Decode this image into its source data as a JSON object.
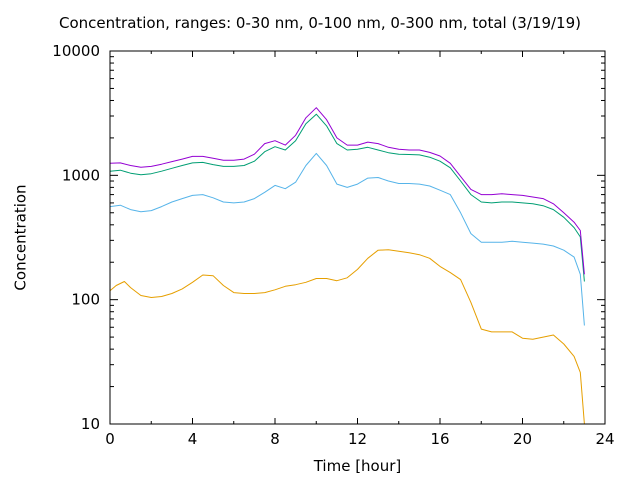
{
  "chart_data": {
    "type": "line",
    "title": "Concentration, ranges: 0-30 nm, 0-100 nm, 0-300 nm, total (3/19/19)",
    "xlabel": "Time [hour]",
    "ylabel": "Concentration",
    "xlim": [
      0,
      24
    ],
    "ylim": [
      10,
      10000
    ],
    "yscale": "log",
    "xticks": [
      "0",
      "4",
      "8",
      "12",
      "16",
      "20",
      "24"
    ],
    "xtick_values": [
      0,
      4,
      8,
      12,
      16,
      20,
      24
    ],
    "yticks": [
      "10",
      "100",
      "1000",
      "10000"
    ],
    "ytick_values": [
      10,
      100,
      1000,
      10000
    ],
    "grid": false,
    "legend": "none",
    "series": [
      {
        "color": "#e69f00",
        "x": [
          0,
          0.3,
          0.7,
          1.0,
          1.5,
          2.0,
          2.5,
          3.0,
          3.5,
          4.0,
          4.5,
          5.0,
          5.5,
          6.0,
          6.5,
          7.0,
          7.5,
          8.0,
          8.5,
          9.0,
          9.5,
          10.0,
          10.5,
          11.0,
          11.5,
          12.0,
          12.5,
          13.0,
          13.5,
          14.0,
          14.5,
          15.0,
          15.5,
          16.0,
          16.5,
          17.0,
          17.5,
          18.0,
          18.5,
          19.0,
          19.5,
          20.0,
          20.5,
          21.0,
          21.5,
          22.0,
          22.5,
          22.8,
          23.0
        ],
        "values": [
          118,
          130,
          140,
          125,
          108,
          104,
          106,
          112,
          122,
          138,
          158,
          156,
          130,
          114,
          112,
          112,
          114,
          120,
          128,
          132,
          138,
          148,
          148,
          142,
          150,
          175,
          215,
          250,
          252,
          245,
          238,
          230,
          215,
          185,
          165,
          145,
          95,
          58,
          55,
          55,
          55,
          49,
          48,
          50,
          52,
          44,
          35,
          26,
          10
        ]
      },
      {
        "color": "#56b4e9",
        "x": [
          0,
          0.5,
          1.0,
          1.5,
          2.0,
          2.5,
          3.0,
          3.5,
          4.0,
          4.5,
          5.0,
          5.5,
          6.0,
          6.5,
          7.0,
          7.5,
          8.0,
          8.5,
          9.0,
          9.5,
          10.0,
          10.5,
          11.0,
          11.5,
          12.0,
          12.5,
          13.0,
          13.5,
          14.0,
          14.5,
          15.0,
          15.5,
          16.0,
          16.5,
          17.0,
          17.5,
          18.0,
          18.5,
          19.0,
          19.5,
          20.0,
          20.5,
          21.0,
          21.5,
          22.0,
          22.5,
          22.8,
          23.0
        ],
        "values": [
          560,
          575,
          530,
          510,
          520,
          560,
          610,
          650,
          690,
          700,
          660,
          610,
          600,
          610,
          650,
          730,
          830,
          780,
          880,
          1200,
          1500,
          1200,
          850,
          800,
          850,
          950,
          960,
          900,
          860,
          860,
          850,
          820,
          760,
          700,
          500,
          340,
          290,
          290,
          290,
          295,
          290,
          285,
          280,
          270,
          250,
          220,
          160,
          62
        ]
      },
      {
        "color": "#009e73",
        "x": [
          0,
          0.5,
          1.0,
          1.5,
          2.0,
          2.5,
          3.0,
          3.5,
          4.0,
          4.5,
          5.0,
          5.5,
          6.0,
          6.5,
          7.0,
          7.5,
          8.0,
          8.5,
          9.0,
          9.5,
          10.0,
          10.5,
          11.0,
          11.5,
          12.0,
          12.5,
          13.0,
          13.5,
          14.0,
          14.5,
          15.0,
          15.5,
          16.0,
          16.5,
          17.0,
          17.5,
          18.0,
          18.5,
          19.0,
          19.5,
          20.0,
          20.5,
          21.0,
          21.5,
          22.0,
          22.5,
          22.8,
          23.0
        ],
        "values": [
          1080,
          1100,
          1040,
          1010,
          1030,
          1080,
          1140,
          1200,
          1260,
          1270,
          1220,
          1180,
          1180,
          1200,
          1300,
          1550,
          1700,
          1600,
          1900,
          2600,
          3100,
          2500,
          1800,
          1600,
          1620,
          1680,
          1600,
          1520,
          1480,
          1470,
          1460,
          1400,
          1300,
          1150,
          900,
          700,
          610,
          600,
          610,
          610,
          600,
          590,
          570,
          530,
          460,
          380,
          320,
          140
        ]
      },
      {
        "color": "#9400d3",
        "x": [
          0,
          0.5,
          1.0,
          1.5,
          2.0,
          2.5,
          3.0,
          3.5,
          4.0,
          4.5,
          5.0,
          5.5,
          6.0,
          6.5,
          7.0,
          7.5,
          8.0,
          8.5,
          9.0,
          9.5,
          10.0,
          10.5,
          11.0,
          11.5,
          12.0,
          12.5,
          13.0,
          13.5,
          14.0,
          14.5,
          15.0,
          15.5,
          16.0,
          16.5,
          17.0,
          17.5,
          18.0,
          18.5,
          19.0,
          19.5,
          20.0,
          20.5,
          21.0,
          21.5,
          22.0,
          22.5,
          22.8,
          23.0
        ],
        "values": [
          1250,
          1260,
          1200,
          1160,
          1180,
          1230,
          1290,
          1350,
          1420,
          1420,
          1370,
          1320,
          1320,
          1350,
          1480,
          1800,
          1900,
          1750,
          2100,
          2900,
          3500,
          2800,
          2000,
          1750,
          1750,
          1850,
          1800,
          1680,
          1620,
          1600,
          1600,
          1530,
          1430,
          1250,
          980,
          770,
          700,
          700,
          710,
          700,
          690,
          670,
          650,
          590,
          500,
          420,
          360,
          160
        ]
      }
    ]
  }
}
